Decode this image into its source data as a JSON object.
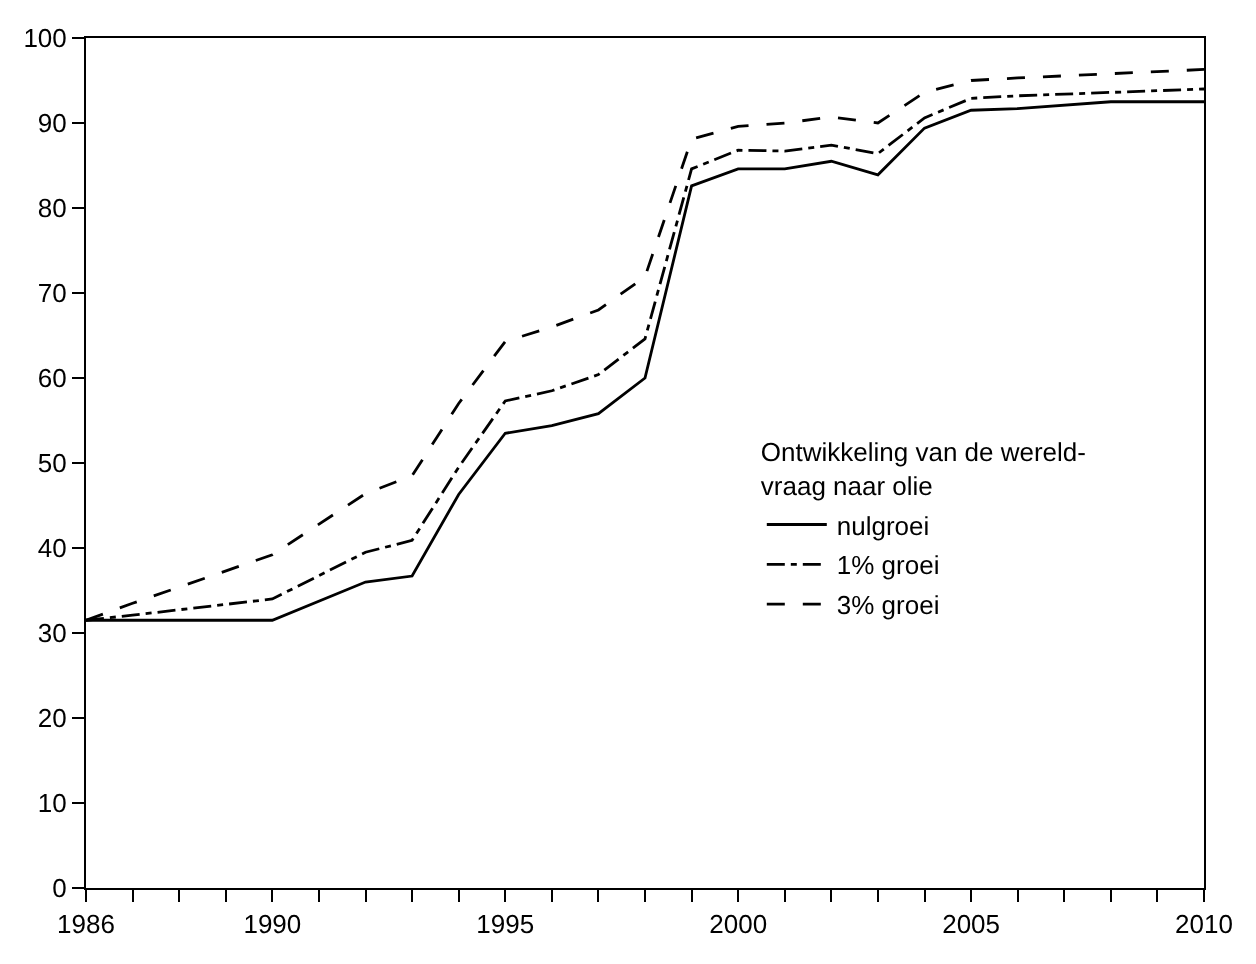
{
  "chart_data": {
    "type": "line",
    "legend_title": "Ontwikkeling van de wereld-\nvraag naar olie",
    "x": [
      1986,
      1987,
      1990,
      1992,
      1993,
      1994,
      1995,
      1996,
      1997,
      1998,
      1999,
      2000,
      2001,
      2002,
      2003,
      2004,
      2005,
      2006,
      2008,
      2010
    ],
    "series": [
      {
        "name": "nulgroei",
        "color": "#000000",
        "line_style": "solid",
        "values": [
          31.5,
          31.5,
          31.5,
          36,
          36.7,
          46.3,
          53.5,
          54.4,
          55.8,
          60,
          82.6,
          84.6,
          84.6,
          85.5,
          83.9,
          89.4,
          91.5,
          91.7,
          92.5,
          92.5
        ]
      },
      {
        "name": "1% groei",
        "color": "#000000",
        "line_style": "dashdot",
        "values": [
          31.5,
          32.1,
          34,
          39.5,
          40.9,
          49.5,
          57.3,
          58.5,
          60.4,
          64.6,
          84.6,
          86.8,
          86.7,
          87.4,
          86.4,
          90.6,
          92.9,
          93.2,
          93.6,
          94
        ]
      },
      {
        "name": "3% groei",
        "color": "#000000",
        "line_style": "dashed",
        "values": [
          31.5,
          33.5,
          39.2,
          46.4,
          48.5,
          57,
          64.3,
          66,
          68,
          71.9,
          88.1,
          89.6,
          90,
          90.7,
          90,
          93.6,
          95,
          95.3,
          95.8,
          96.3
        ]
      }
    ],
    "xlim": [
      1986,
      2010
    ],
    "xticks": [
      1986,
      {
        "value": 1987,
        "label": null
      },
      {
        "value": 1988,
        "label": null
      },
      {
        "value": 1989,
        "label": null
      },
      1990,
      {
        "value": 1991,
        "label": null
      },
      {
        "value": 1992,
        "label": null
      },
      {
        "value": 1993,
        "label": null
      },
      {
        "value": 1994,
        "label": null
      },
      1995,
      {
        "value": 1996,
        "label": null
      },
      {
        "value": 1997,
        "label": null
      },
      {
        "value": 1998,
        "label": null
      },
      {
        "value": 1999,
        "label": null
      },
      2000,
      {
        "value": 2001,
        "label": null
      },
      {
        "value": 2002,
        "label": null
      },
      {
        "value": 2003,
        "label": null
      },
      {
        "value": 2004,
        "label": null
      },
      2005,
      {
        "value": 2006,
        "label": null
      },
      {
        "value": 2007,
        "label": null
      },
      {
        "value": 2008,
        "label": null
      },
      {
        "value": 2009,
        "label": null
      },
      2010
    ],
    "ylim": [
      0,
      100
    ],
    "yticks": [
      0,
      10,
      20,
      30,
      40,
      50,
      60,
      70,
      80,
      90,
      100
    ],
    "legend": "right",
    "marker": "none"
  }
}
